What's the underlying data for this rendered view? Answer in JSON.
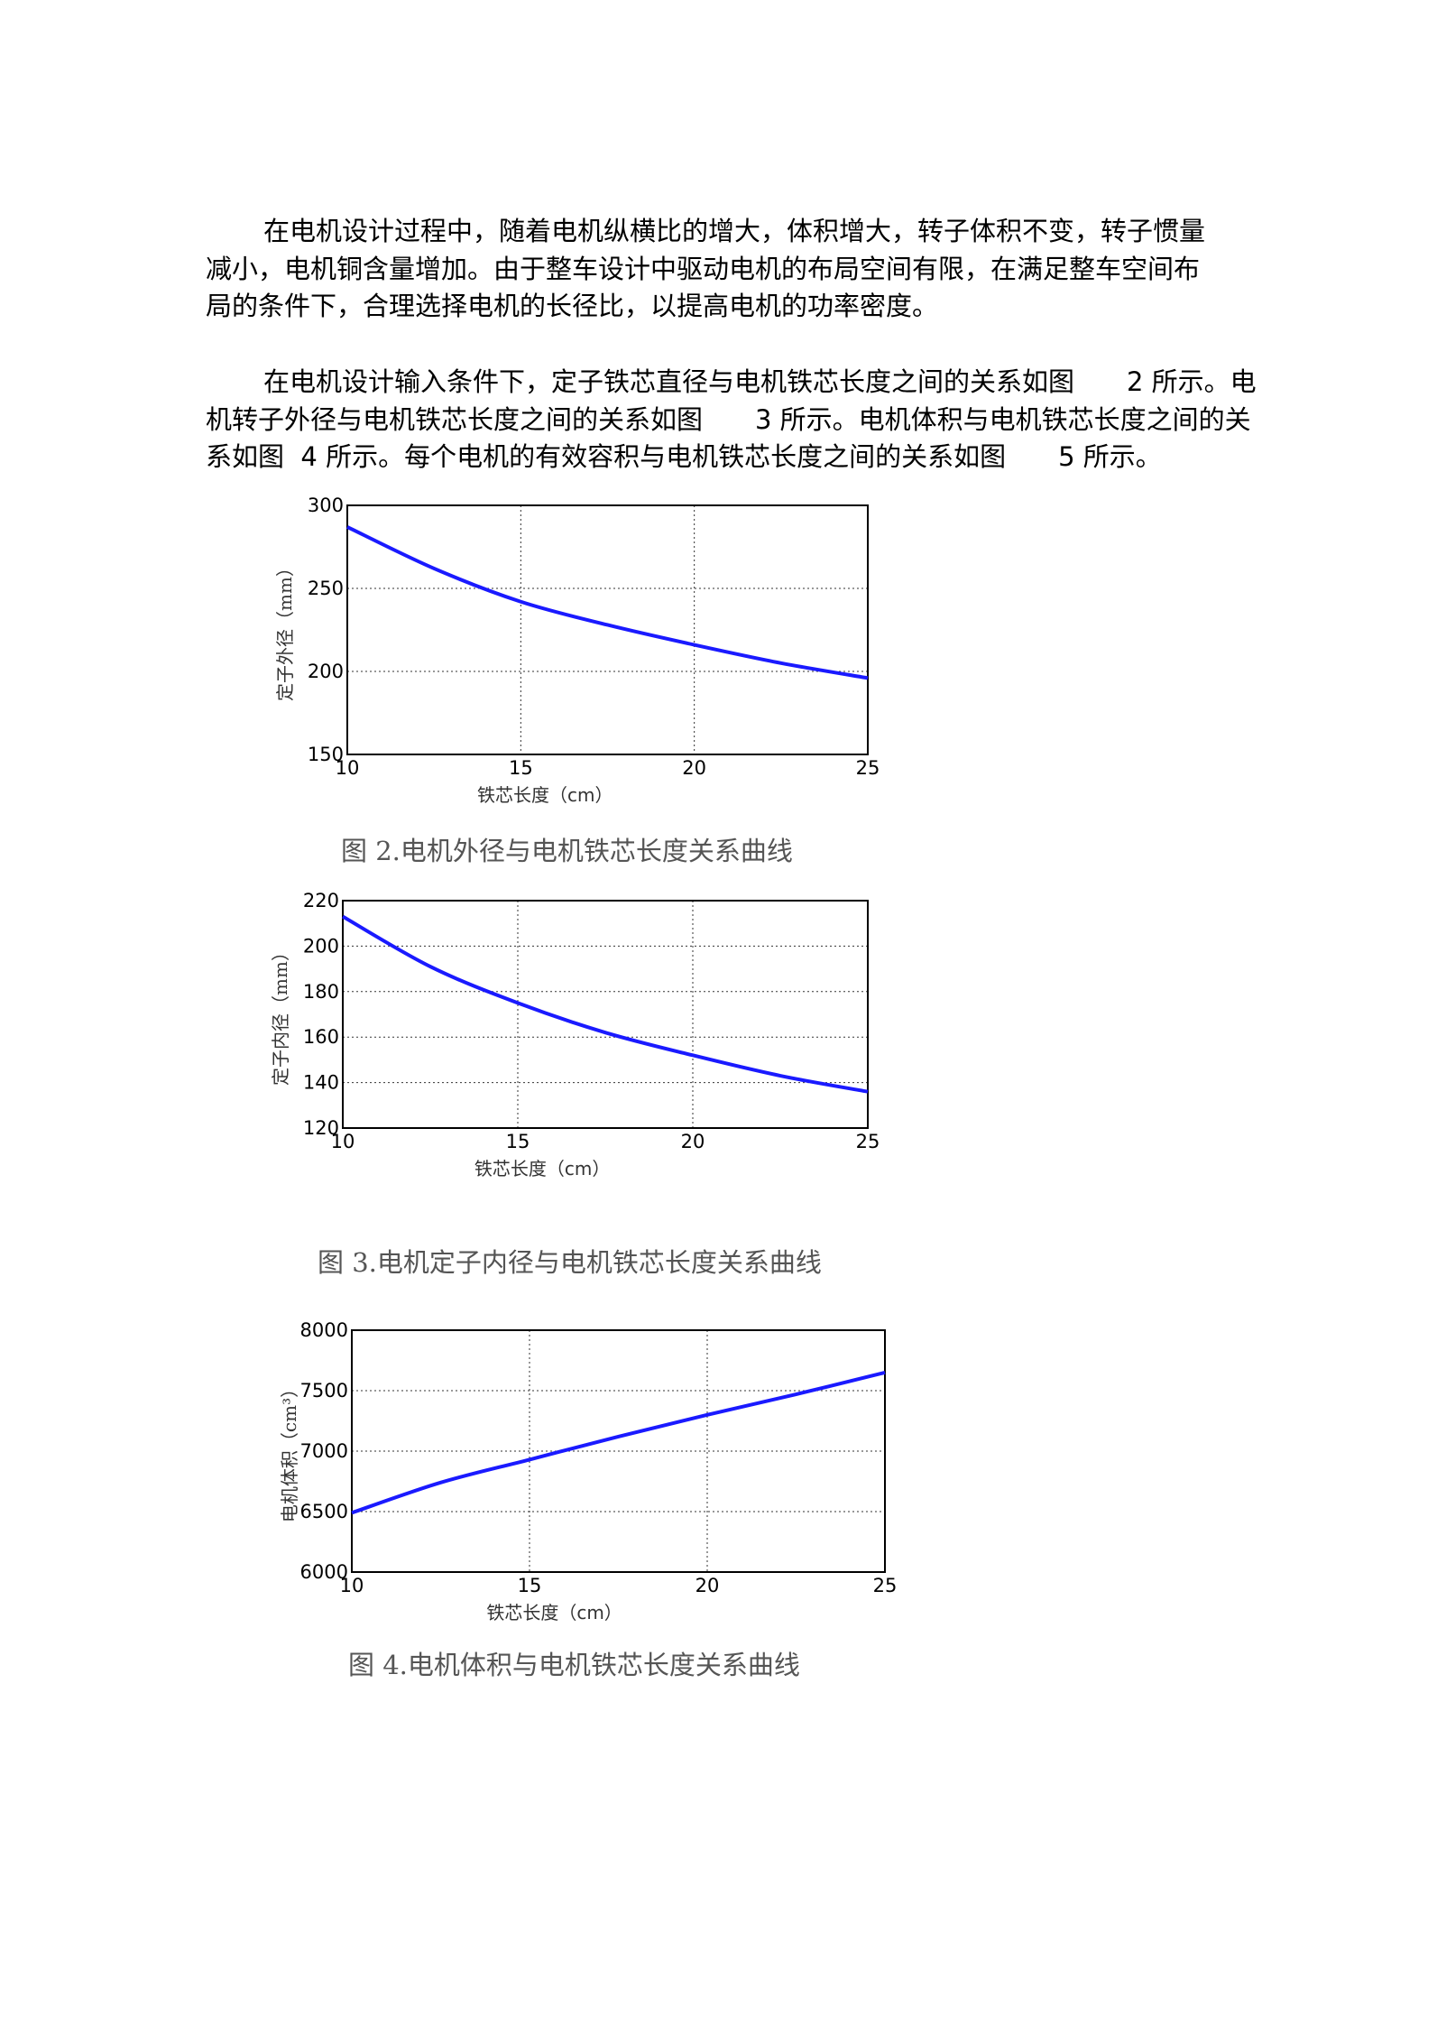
{
  "paragraphs": [
    {
      "lines": [
        "在电机设计过程中，随着电机纵横比的增大，体积增大，转子体积不变，转子惯量",
        "减小，电机铜含量增加。由于整车设计中驱动电机的布局空间有限，在满足整车空间布",
        "局的条件下，合理选择电机的长径比，以提高电机的功率密度。"
      ]
    },
    {
      "lines": [
        "在电机设计输入条件下，定子铁芯直径与电机铁芯长度之间的关系如图　　2 所示。电",
        "机转子外径与电机铁芯长度之间的关系如图　　3 所示。电机体积与电机铁芯长度之间的关",
        "系如图  4 所示。每个电机的有效容积与电机铁芯长度之间的关系如图　　5 所示。"
      ]
    }
  ],
  "chart_data": [
    {
      "type": "line",
      "caption": "图 2.电机外径与电机铁芯长度关系曲线",
      "xlabel": "铁芯长度（cm）",
      "ylabel": "定子外径（mm）",
      "xlim": [
        10,
        25
      ],
      "ylim": [
        150,
        300
      ],
      "xticks": [
        "10",
        "15",
        "20",
        "25"
      ],
      "yticks": [
        "150",
        "200",
        "250",
        "300"
      ],
      "grid": true,
      "color": "#1a1aff",
      "series": [
        {
          "x": [
            10,
            12.5,
            15,
            17.5,
            20,
            22.5,
            25
          ],
          "y": [
            287,
            262,
            242,
            228,
            216,
            205,
            196
          ]
        }
      ]
    },
    {
      "type": "line",
      "caption": "图 3.电机定子内径与电机铁芯长度关系曲线",
      "xlabel": "铁芯长度（cm）",
      "ylabel": "定子内径（mm）",
      "xlim": [
        10,
        25
      ],
      "ylim": [
        120,
        220
      ],
      "xticks": [
        "10",
        "15",
        "20",
        "25"
      ],
      "yticks": [
        "120",
        "140",
        "160",
        "180",
        "200",
        "220"
      ],
      "grid": true,
      "color": "#1a1aff",
      "series": [
        {
          "x": [
            10,
            12.5,
            15,
            17.5,
            20,
            22.5,
            25
          ],
          "y": [
            213,
            191,
            175,
            162,
            152,
            143,
            136
          ]
        }
      ]
    },
    {
      "type": "line",
      "caption": "图 4.电机体积与电机铁芯长度关系曲线",
      "xlabel": "铁芯长度（cm）",
      "ylabel": "电机体积（cm³）",
      "xlim": [
        10,
        25
      ],
      "ylim": [
        6000,
        8000
      ],
      "xticks": [
        "10",
        "15",
        "20",
        "25"
      ],
      "yticks": [
        "6000",
        "6500",
        "7000",
        "7500",
        "8000"
      ],
      "grid": true,
      "color": "#1a1aff",
      "series": [
        {
          "x": [
            10,
            12.5,
            15,
            17.5,
            20,
            22.5,
            25
          ],
          "y": [
            6490,
            6740,
            6930,
            7120,
            7300,
            7470,
            7650
          ]
        }
      ]
    }
  ]
}
